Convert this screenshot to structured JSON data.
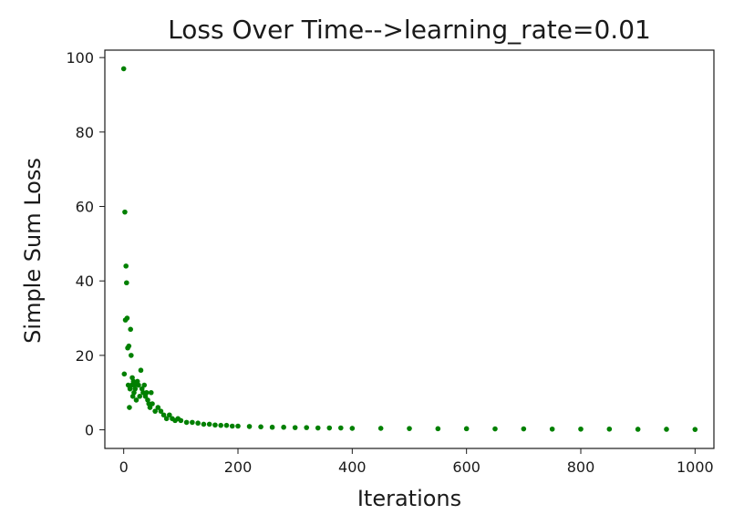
{
  "chart_data": {
    "type": "scatter",
    "title": "Loss Over Time-->learning_rate=0.01",
    "xlabel": "Iterations",
    "ylabel": "Simple Sum Loss",
    "xlim": [
      -33,
      1033
    ],
    "ylim": [
      -5,
      102
    ],
    "xticks": [
      0,
      200,
      400,
      600,
      800,
      1000
    ],
    "yticks": [
      0,
      20,
      40,
      60,
      80,
      100
    ],
    "grid": false,
    "marker_color": "#008000",
    "series": [
      {
        "x": [
          0,
          1,
          2,
          3,
          4,
          5,
          6,
          7,
          8,
          9,
          10,
          11,
          12,
          13,
          14,
          15,
          16,
          17,
          18,
          19,
          20,
          22,
          24,
          26,
          28,
          30,
          32,
          34,
          36,
          38,
          40,
          42,
          44,
          46,
          48,
          50,
          55,
          60,
          65,
          70,
          75,
          80,
          85,
          90,
          95,
          100,
          110,
          120,
          130,
          140,
          150,
          160,
          170,
          180,
          190,
          200,
          220,
          240,
          260,
          280,
          300,
          320,
          340,
          360,
          380,
          400,
          450,
          500,
          550,
          600,
          650,
          700,
          750,
          800,
          850,
          900,
          950,
          1000
        ],
        "y": [
          97,
          15,
          58.5,
          29.5,
          44,
          39.5,
          30,
          22,
          12,
          22.5,
          6,
          11,
          27,
          20,
          12,
          14,
          9,
          13,
          10,
          12,
          11,
          8,
          13,
          12,
          9,
          16,
          11,
          10,
          12,
          9,
          10,
          8,
          7,
          6,
          10,
          7,
          5,
          6,
          5,
          4,
          3,
          4,
          3,
          2.5,
          3,
          2.5,
          2,
          2,
          1.8,
          1.5,
          1.5,
          1.3,
          1.2,
          1.2,
          1.0,
          1.0,
          0.9,
          0.8,
          0.7,
          0.7,
          0.6,
          0.6,
          0.5,
          0.5,
          0.5,
          0.4,
          0.4,
          0.35,
          0.3,
          0.3,
          0.25,
          0.25,
          0.2,
          0.2,
          0.2,
          0.15,
          0.15,
          0.1
        ]
      }
    ]
  }
}
